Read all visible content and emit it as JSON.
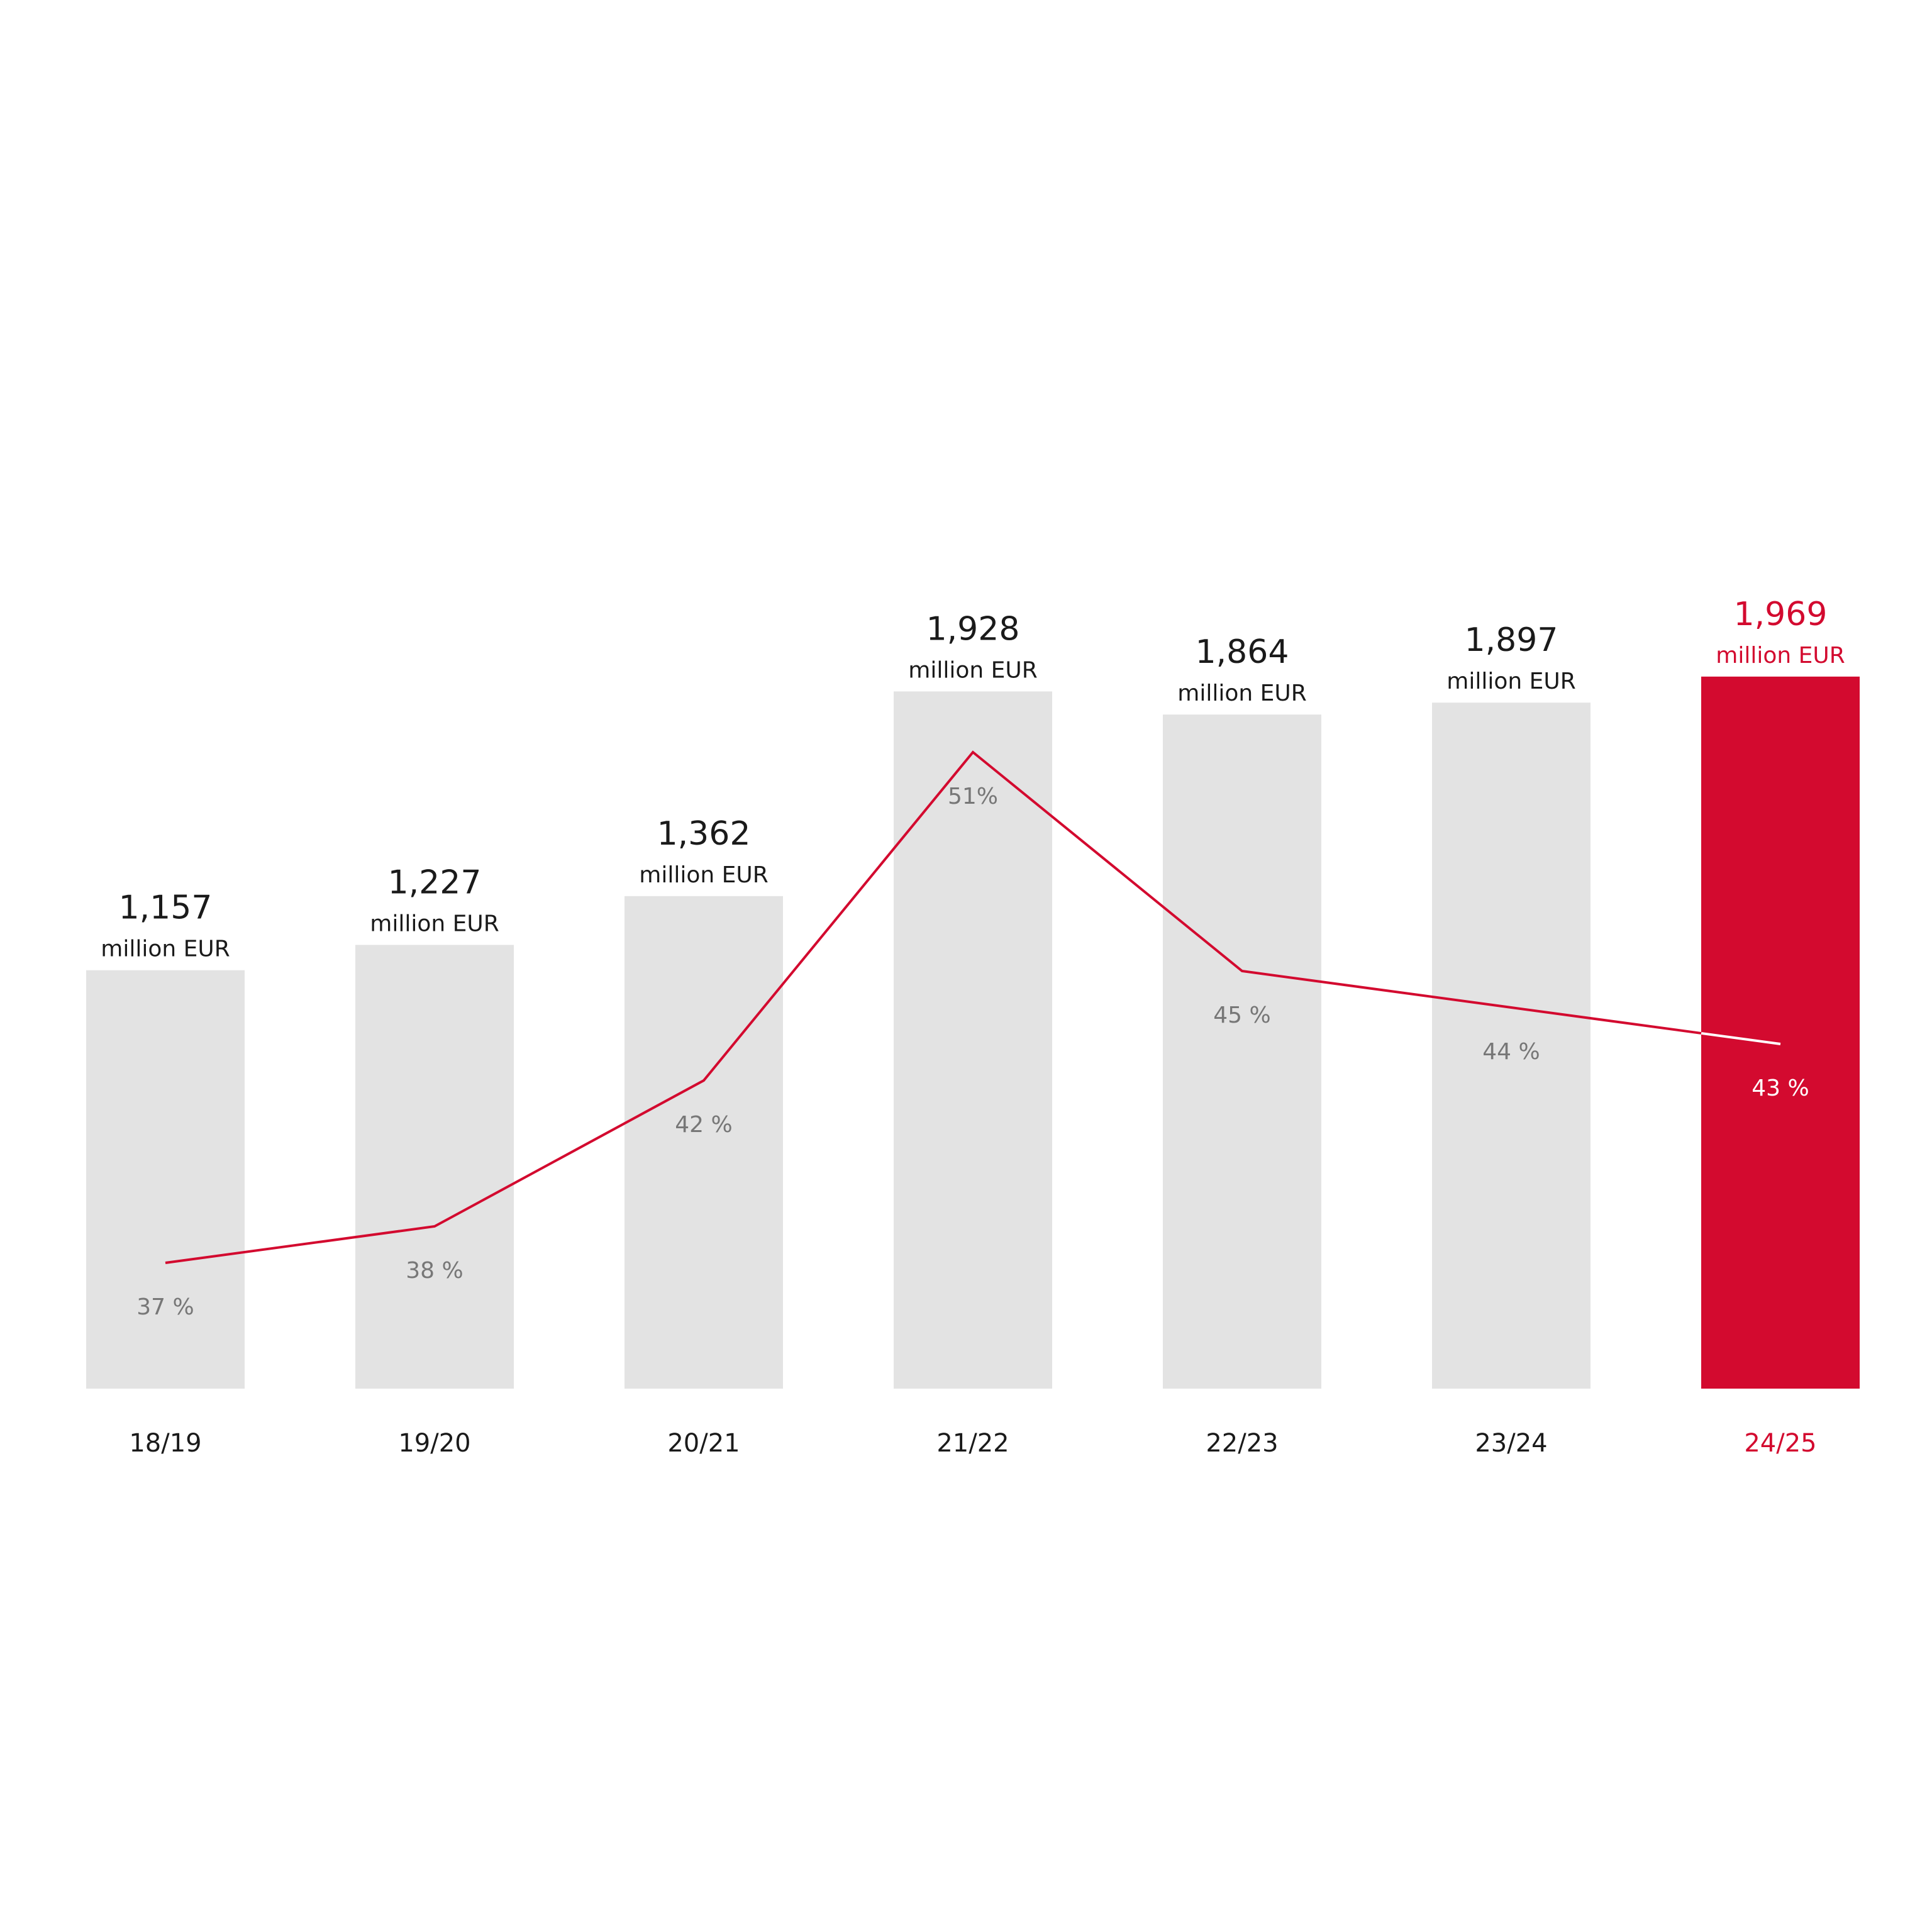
{
  "chart_data": {
    "type": "bar",
    "categories": [
      "18/19",
      "19/20",
      "20/21",
      "21/22",
      "22/23",
      "23/24",
      "24/25"
    ],
    "series": [
      {
        "values": [
          1157,
          1227,
          1362,
          1928,
          1864,
          1897,
          1969
        ]
      },
      {
        "values": [
          37,
          38,
          42,
          51,
          45,
          44,
          43
        ]
      }
    ],
    "value_labels": [
      "1,157",
      "1,227",
      "1,362",
      "1,928",
      "1,864",
      "1,897",
      "1,969"
    ],
    "unit_label": "million EUR",
    "percent_labels": [
      "37 %",
      "38 %",
      "42 %",
      "51%",
      "45 %",
      "44 %",
      "43 %"
    ],
    "highlight_index": 6,
    "colors": {
      "bar": "#e3e3e3",
      "highlight": "#d30a2f",
      "line": "#d30a2f",
      "line_on_highlight": "#ffffff",
      "text": "#1a1a1a",
      "percent_text": "#777777",
      "percent_text_on_highlight": "#ffffff"
    },
    "title": "",
    "xlabel": "",
    "ylabel": "",
    "grid": false,
    "legend": "none"
  }
}
